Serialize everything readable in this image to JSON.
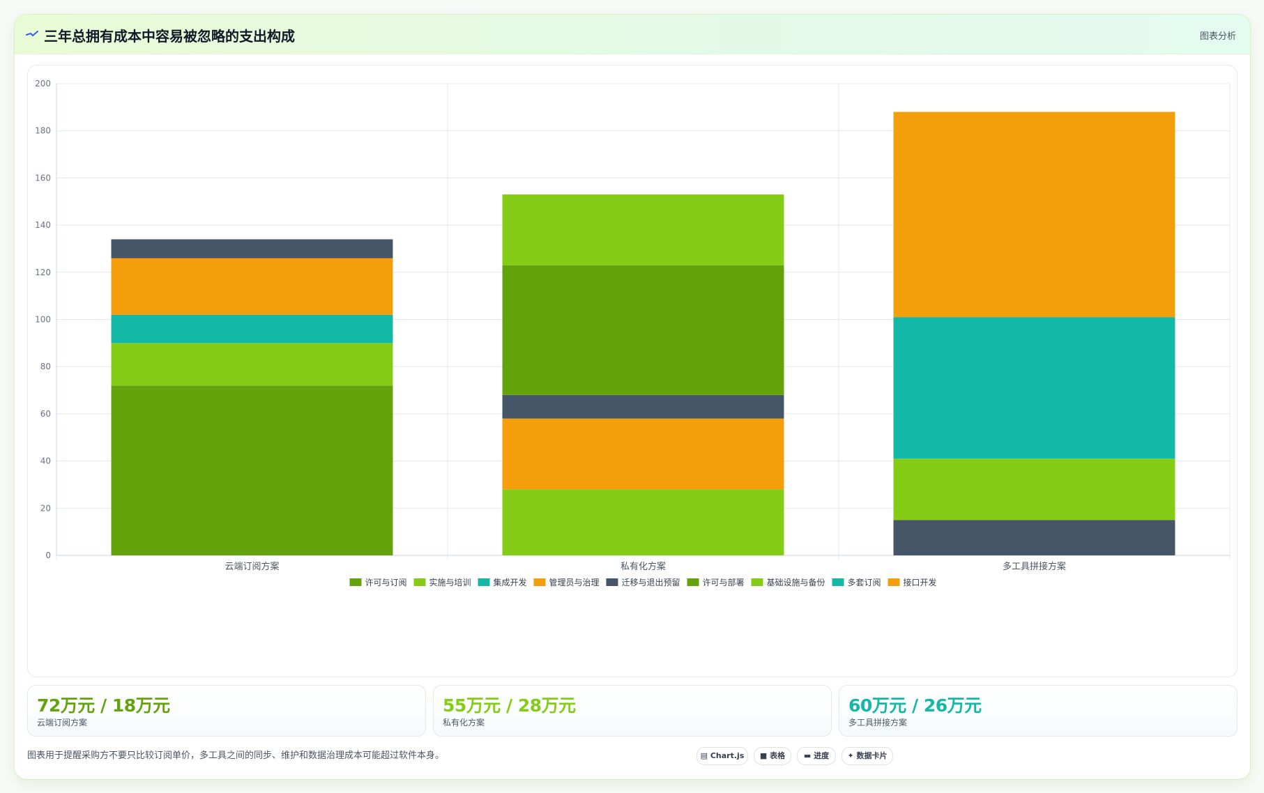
{
  "header": {
    "title": "三年总拥有成本中容易被忽略的支出构成",
    "analysis_link": "图表分析",
    "title_icon": "trend-line-icon"
  },
  "chart_data": {
    "type": "bar",
    "stacked": true,
    "categories": [
      "云端订阅方案",
      "私有化方案",
      "多工具拼接方案"
    ],
    "ylim": [
      0,
      200
    ],
    "yticks": [
      0,
      20,
      40,
      60,
      80,
      100,
      120,
      140,
      160,
      180,
      200
    ],
    "grid": true,
    "legend_position": "bottom",
    "series": [
      {
        "name": "许可与订阅",
        "color": "#65a30d",
        "values": [
          72,
          0,
          0
        ]
      },
      {
        "name": "实施与培训",
        "color": "#84cc16",
        "values": [
          18,
          28,
          0
        ]
      },
      {
        "name": "集成开发",
        "color": "#14b8a6",
        "values": [
          12,
          0,
          0
        ]
      },
      {
        "name": "管理员与治理",
        "color": "#f59e0b",
        "values": [
          24,
          30,
          0
        ]
      },
      {
        "name": "迁移与退出预留",
        "color": "#475569",
        "values": [
          8,
          10,
          15
        ]
      },
      {
        "name": "许可与部署",
        "color": "#65a30d",
        "values": [
          0,
          55,
          0
        ]
      },
      {
        "name": "基础设施与备份",
        "color": "#84cc16",
        "values": [
          0,
          30,
          26
        ]
      },
      {
        "name": "多套订阅",
        "color": "#14b8a6",
        "values": [
          0,
          0,
          60
        ]
      },
      {
        "name": "接口开发",
        "color": "#f59e0b",
        "values": [
          0,
          0,
          87
        ]
      }
    ]
  },
  "stats": [
    {
      "value": "72万元 / 18万元",
      "label": "云端订阅方案",
      "color": "#65a30d"
    },
    {
      "value": "55万元 / 28万元",
      "label": "私有化方案",
      "color": "#84cc16"
    },
    {
      "value": "60万元 / 26万元",
      "label": "多工具拼接方案",
      "color": "#14b8a6"
    }
  ],
  "footer": {
    "note": "图表用于提醒采购方不要只比较订阅单价，多工具之间的同步、维护和数据治理成本可能超过软件本身。",
    "tags": [
      {
        "icon": "chart-icon",
        "label": "Chart.js"
      },
      {
        "icon": "table-icon",
        "label": "表格"
      },
      {
        "icon": "progress-icon",
        "label": "进度"
      },
      {
        "icon": "sparkle-icon",
        "label": "数据卡片"
      }
    ]
  }
}
